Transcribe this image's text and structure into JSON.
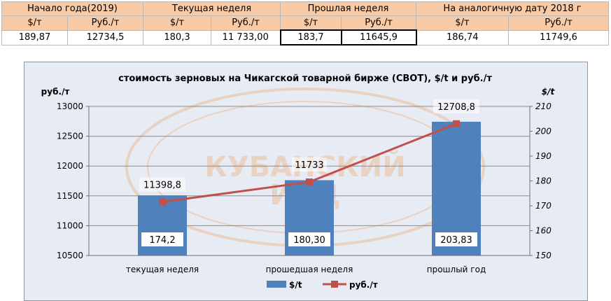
{
  "table": {
    "groups": [
      "Начало года(2019)",
      "Текущая неделя",
      "Прошлая неделя",
      "На аналогичную дату 2018 г"
    ],
    "units": [
      "$/т",
      "Руб./т",
      "$/т",
      "Руб./т",
      "$/т",
      "Руб./т",
      "$/т",
      "Руб./т"
    ],
    "values": [
      "189,87",
      "12734,5",
      "180,3",
      "11 733,00",
      "183,7",
      "11645,9",
      "186,74",
      "11749,6"
    ]
  },
  "watermark": {
    "line1": "КУБАНСКИЙ",
    "line2": "ИАЦ"
  },
  "chart_data": {
    "type": "bar",
    "title": "стоимость зерновых на Чикагской товарной бирже (CBOT), $/t и руб./т",
    "ylabel": "руб./т",
    "y2label": "$/t",
    "categories": [
      "текущая неделя",
      "прошедшая неделя",
      "прошлый год"
    ],
    "ylim": [
      10500,
      13000
    ],
    "yticks": [
      10500,
      11000,
      11500,
      12000,
      12500,
      13000
    ],
    "y2lim": [
      150,
      210
    ],
    "y2ticks": [
      150,
      160,
      170,
      180,
      190,
      200,
      210
    ],
    "grid": true,
    "legend_position": "bottom",
    "series": [
      {
        "name": "$/t",
        "type": "bar",
        "axis": "right",
        "color": "#4f81bd",
        "values": [
          174.2,
          180.3,
          203.83
        ],
        "labels": [
          "174,2",
          "180,30",
          "203,83"
        ]
      },
      {
        "name": "руб./т",
        "type": "line",
        "axis": "left",
        "color": "#c0504d",
        "values": [
          11398.8,
          11733,
          12708.8
        ],
        "labels": [
          "11398,8",
          "11733",
          "12708,8"
        ]
      }
    ]
  }
}
